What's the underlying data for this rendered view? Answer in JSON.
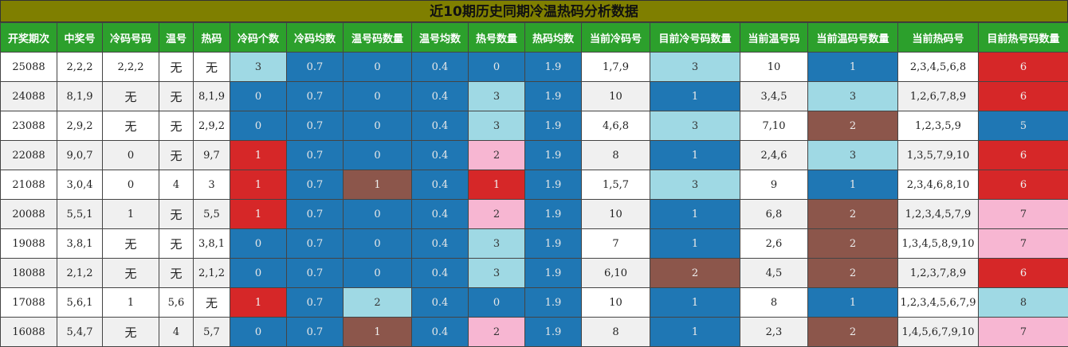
{
  "title": "近10期历史同期冷温热码分析数据",
  "headers": [
    "开奖期次",
    "中奖号",
    "冷码号码",
    "温号",
    "热码",
    "冷码个数",
    "冷码均数",
    "温号码数量",
    "温号均数",
    "热号数量",
    "热码均数",
    "当前冷码号",
    "目前冷号码数量",
    "当前温号码",
    "当前温码号数量",
    "当前热码号",
    "目前热号码数量"
  ],
  "colors": {
    "lightblue": "#9fd9e4",
    "blue": "#1f77b4",
    "red": "#d62728",
    "brown": "#8c564b",
    "pink": "#f7b6d2",
    "header_green": "#2ca02c",
    "title_olive": "#7f7f00"
  },
  "rows": [
    {
      "cells": [
        "25088",
        "2,2,2",
        "2,2,2",
        "无",
        "无",
        "3",
        "0.7",
        "0",
        "0.4",
        "0",
        "1.9",
        "1,7,9",
        "3",
        "10",
        "1",
        "2,3,4,5,6,8",
        "6"
      ],
      "colors": [
        "",
        "",
        "",
        "",
        "",
        "lightblue",
        "blue",
        "blue",
        "blue",
        "blue",
        "blue",
        "white",
        "lightblue",
        "white",
        "blue",
        "white",
        "red"
      ]
    },
    {
      "cells": [
        "24088",
        "8,1,9",
        "无",
        "无",
        "8,1,9",
        "0",
        "0.7",
        "0",
        "0.4",
        "3",
        "1.9",
        "10",
        "1",
        "3,4,5",
        "3",
        "1,2,6,7,8,9",
        "6"
      ],
      "colors": [
        "",
        "",
        "",
        "",
        "",
        "blue",
        "blue",
        "blue",
        "blue",
        "lightblue",
        "blue",
        "",
        "blue",
        "",
        "lightblue",
        "",
        "red"
      ]
    },
    {
      "cells": [
        "23088",
        "2,9,2",
        "无",
        "无",
        "2,9,2",
        "0",
        "0.7",
        "0",
        "0.4",
        "3",
        "1.9",
        "4,6,8",
        "3",
        "7,10",
        "2",
        "1,2,3,5,9",
        "5"
      ],
      "colors": [
        "",
        "",
        "",
        "",
        "",
        "blue",
        "blue",
        "blue",
        "blue",
        "lightblue",
        "blue",
        "white",
        "lightblue",
        "white",
        "brown",
        "white",
        "blue"
      ]
    },
    {
      "cells": [
        "22088",
        "9,0,7",
        "0",
        "无",
        "9,7",
        "1",
        "0.7",
        "0",
        "0.4",
        "2",
        "1.9",
        "8",
        "1",
        "2,4,6",
        "3",
        "1,3,5,7,9,10",
        "6"
      ],
      "colors": [
        "",
        "",
        "",
        "",
        "",
        "red",
        "blue",
        "blue",
        "blue",
        "pink",
        "blue",
        "",
        "blue",
        "",
        "lightblue",
        "",
        "red"
      ]
    },
    {
      "cells": [
        "21088",
        "3,0,4",
        "0",
        "4",
        "3",
        "1",
        "0.7",
        "1",
        "0.4",
        "1",
        "1.9",
        "1,5,7",
        "3",
        "9",
        "1",
        "2,3,4,6,8,10",
        "6"
      ],
      "colors": [
        "",
        "",
        "",
        "",
        "",
        "red",
        "blue",
        "brown",
        "blue",
        "red",
        "blue",
        "white",
        "lightblue",
        "white",
        "blue",
        "white",
        "red"
      ]
    },
    {
      "cells": [
        "20088",
        "5,5,1",
        "1",
        "无",
        "5,5",
        "1",
        "0.7",
        "0",
        "0.4",
        "2",
        "1.9",
        "10",
        "1",
        "6,8",
        "2",
        "1,2,3,4,5,7,9",
        "7"
      ],
      "colors": [
        "",
        "",
        "",
        "",
        "",
        "red",
        "blue",
        "blue",
        "blue",
        "pink",
        "blue",
        "",
        "blue",
        "",
        "brown",
        "",
        "pink"
      ]
    },
    {
      "cells": [
        "19088",
        "3,8,1",
        "无",
        "无",
        "3,8,1",
        "0",
        "0.7",
        "0",
        "0.4",
        "3",
        "1.9",
        "7",
        "1",
        "2,6",
        "2",
        "1,3,4,5,8,9,10",
        "7"
      ],
      "colors": [
        "",
        "",
        "",
        "",
        "",
        "blue",
        "blue",
        "blue",
        "blue",
        "lightblue",
        "blue",
        "white",
        "blue",
        "white",
        "brown",
        "white",
        "pink"
      ]
    },
    {
      "cells": [
        "18088",
        "2,1,2",
        "无",
        "无",
        "2,1,2",
        "0",
        "0.7",
        "0",
        "0.4",
        "3",
        "1.9",
        "6,10",
        "2",
        "4,5",
        "2",
        "1,2,3,7,8,9",
        "6"
      ],
      "colors": [
        "",
        "",
        "",
        "",
        "",
        "blue",
        "blue",
        "blue",
        "blue",
        "lightblue",
        "blue",
        "",
        "brown",
        "",
        "brown",
        "",
        "red"
      ]
    },
    {
      "cells": [
        "17088",
        "5,6,1",
        "1",
        "5,6",
        "无",
        "1",
        "0.7",
        "2",
        "0.4",
        "0",
        "1.9",
        "10",
        "1",
        "8",
        "1",
        "1,2,3,4,5,6,7,9",
        "8"
      ],
      "colors": [
        "",
        "",
        "",
        "",
        "",
        "red",
        "blue",
        "lightblue",
        "blue",
        "blue",
        "blue",
        "white",
        "blue",
        "white",
        "blue",
        "white",
        "lightblue"
      ]
    },
    {
      "cells": [
        "16088",
        "5,4,7",
        "无",
        "4",
        "5,7",
        "0",
        "0.7",
        "1",
        "0.4",
        "2",
        "1.9",
        "8",
        "1",
        "2,3",
        "2",
        "1,4,5,6,7,9,10",
        "7"
      ],
      "colors": [
        "",
        "",
        "",
        "",
        "",
        "blue",
        "blue",
        "brown",
        "blue",
        "pink",
        "blue",
        "",
        "blue",
        "",
        "brown",
        "",
        "pink"
      ]
    }
  ]
}
